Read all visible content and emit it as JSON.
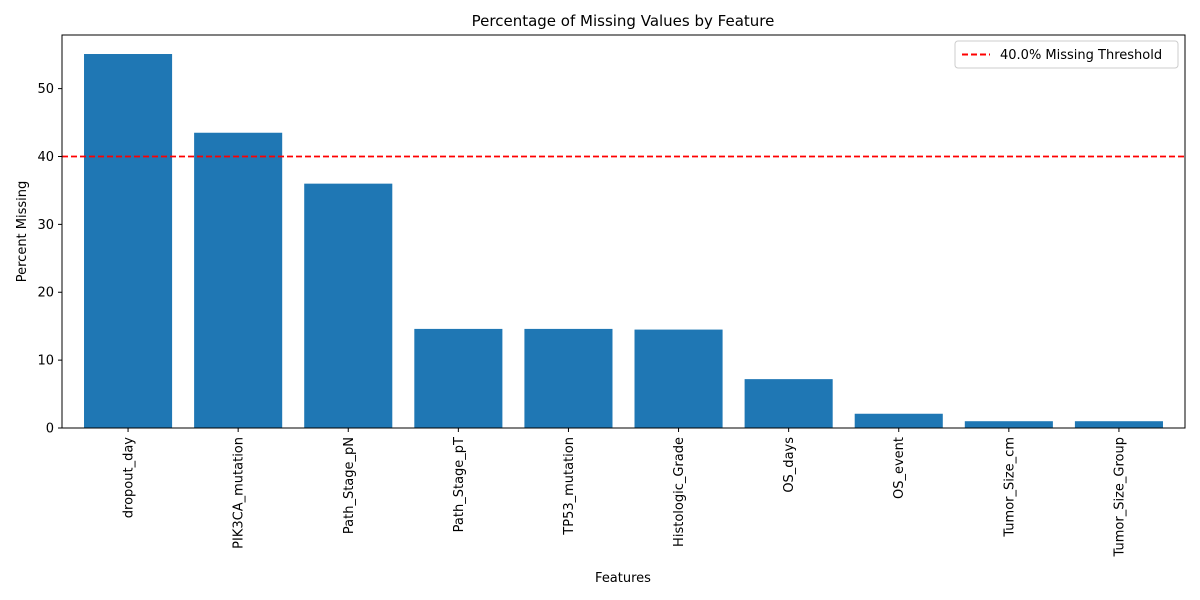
{
  "chart_data": {
    "type": "bar",
    "title": "Percentage of Missing Values by Feature",
    "xlabel": "Features",
    "ylabel": "Percent Missing",
    "categories": [
      "dropout_day",
      "PIK3CA_mutation",
      "Path_Stage_pN",
      "Path_Stage_pT",
      "TP53_mutation",
      "Histologic_Grade",
      "OS_days",
      "OS_event",
      "Tumor_Size_cm",
      "Tumor_Size_Group"
    ],
    "values": [
      55.1,
      43.5,
      36.0,
      14.6,
      14.6,
      14.5,
      7.2,
      2.1,
      1.0,
      1.0
    ],
    "ylim": [
      0,
      57.9
    ],
    "yticks": [
      0,
      10,
      20,
      30,
      40,
      50
    ],
    "threshold": {
      "value": 40.0,
      "label": "40.0% Missing Threshold",
      "color": "#ff0000",
      "style": "dashed"
    },
    "bar_color": "#1f77b4",
    "grid": false,
    "legend_position": "top-right"
  }
}
